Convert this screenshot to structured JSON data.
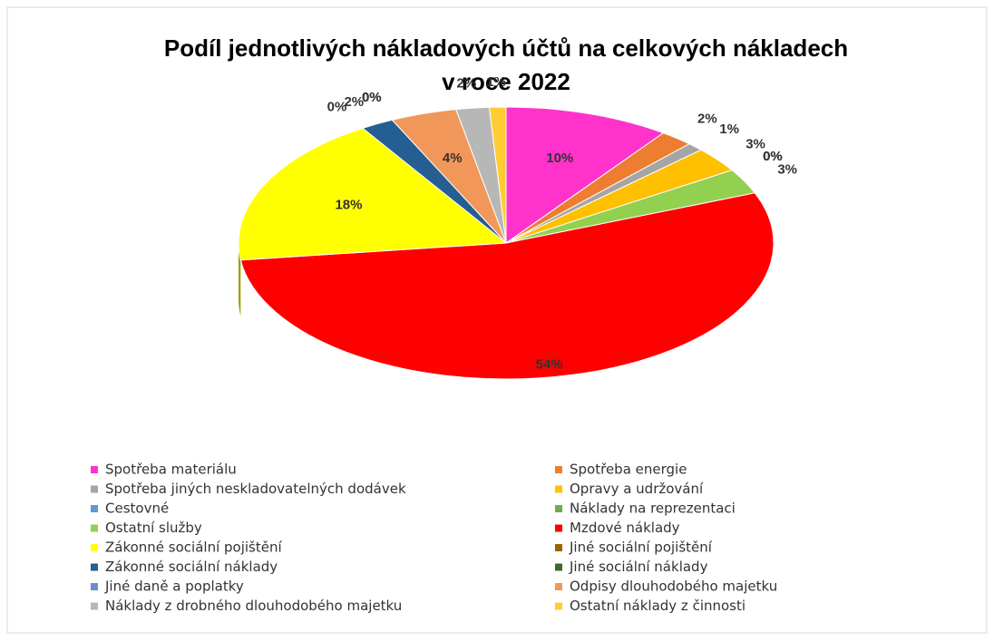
{
  "chart_data": {
    "type": "pie",
    "title": "Podíl jednotlivých nákladových účtů na celkových nákladech",
    "subtitle": "v roce 2022",
    "categories": [
      "Spotřeba materiálu",
      "Spotřeba energie",
      "Spotřeba jiných neskladovatelných dodávek",
      "Opravy a udržování",
      "Cestovné",
      "Náklady na reprezentaci",
      "Ostatní služby",
      "Mzdové náklady",
      "Zákonné sociální pojištění",
      "Jiné sociální pojištění",
      "Zákonné sociální náklady",
      "Jiné sociální náklady",
      "Jiné daně a poplatky",
      "Odpisy dlouhodobého majetku",
      "Náklady z drobného dlouhodobého majetku",
      "Ostatní náklady z činnosti"
    ],
    "values": [
      10,
      2,
      1,
      3,
      0,
      0,
      3,
      54,
      18,
      0,
      2,
      0,
      0,
      4,
      2,
      1
    ],
    "value_labels": [
      "10%",
      "2%",
      "1%",
      "3%",
      "0%",
      "0%",
      "3%",
      "54%",
      "18%",
      "0%",
      "2%",
      "0%",
      "0%",
      "4%",
      "2%",
      "1%"
    ],
    "colors": [
      "#ff33cc",
      "#ed7d31",
      "#a5a5a5",
      "#ffc000",
      "#5b9bd5",
      "#70ad47",
      "#92d050",
      "#ff0000",
      "#ffff00",
      "#9c6500",
      "#255e91",
      "#43682b",
      "#698ed0",
      "#f1975a",
      "#b7b7b7",
      "#ffcd33"
    ],
    "legend": "bottom"
  }
}
